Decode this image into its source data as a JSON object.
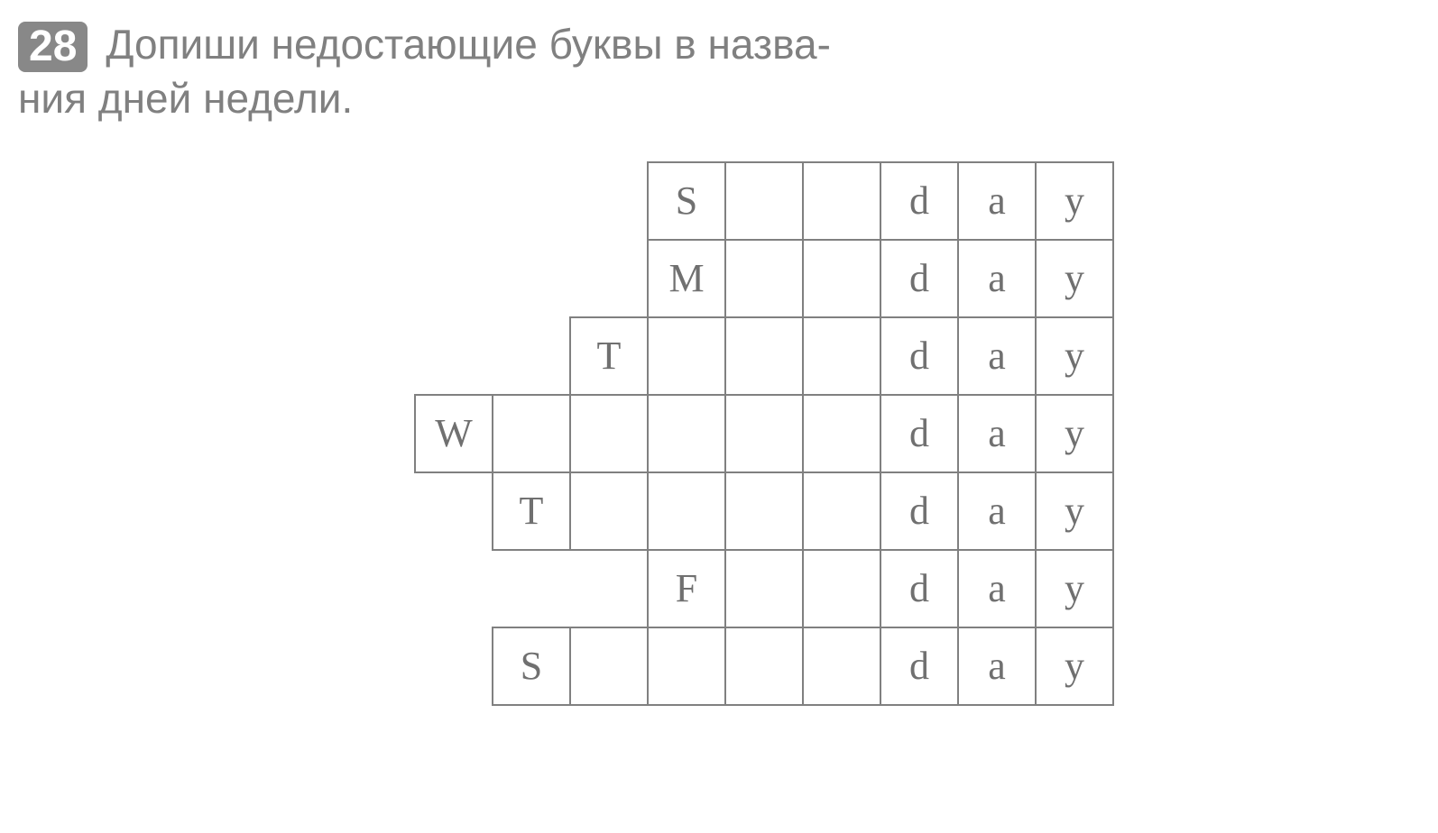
{
  "exercise": {
    "number": "28",
    "instruction_line1": "Допиши  недостающие  буквы  в  назва-",
    "instruction_line2": "ния  дней  недели."
  },
  "grid": {
    "columns": 9,
    "rows": 7,
    "cell_size": 86,
    "border_color": "#808080",
    "text_color": "#707070",
    "font_size": 44,
    "days": [
      {
        "row": 0,
        "cells": [
          {
            "col": 0,
            "text": "",
            "visible": false
          },
          {
            "col": 1,
            "text": "",
            "visible": false
          },
          {
            "col": 2,
            "text": "",
            "visible": false
          },
          {
            "col": 3,
            "text": "S",
            "visible": true
          },
          {
            "col": 4,
            "text": "",
            "visible": true
          },
          {
            "col": 5,
            "text": "",
            "visible": true
          },
          {
            "col": 6,
            "text": "d",
            "visible": true
          },
          {
            "col": 7,
            "text": "a",
            "visible": true
          },
          {
            "col": 8,
            "text": "y",
            "visible": true
          }
        ]
      },
      {
        "row": 1,
        "cells": [
          {
            "col": 0,
            "text": "",
            "visible": false
          },
          {
            "col": 1,
            "text": "",
            "visible": false
          },
          {
            "col": 2,
            "text": "",
            "visible": false
          },
          {
            "col": 3,
            "text": "M",
            "visible": true
          },
          {
            "col": 4,
            "text": "",
            "visible": true
          },
          {
            "col": 5,
            "text": "",
            "visible": true
          },
          {
            "col": 6,
            "text": "d",
            "visible": true
          },
          {
            "col": 7,
            "text": "a",
            "visible": true
          },
          {
            "col": 8,
            "text": "y",
            "visible": true
          }
        ]
      },
      {
        "row": 2,
        "cells": [
          {
            "col": 0,
            "text": "",
            "visible": false
          },
          {
            "col": 1,
            "text": "",
            "visible": false
          },
          {
            "col": 2,
            "text": "T",
            "visible": true
          },
          {
            "col": 3,
            "text": "",
            "visible": true
          },
          {
            "col": 4,
            "text": "",
            "visible": true
          },
          {
            "col": 5,
            "text": "",
            "visible": true
          },
          {
            "col": 6,
            "text": "d",
            "visible": true
          },
          {
            "col": 7,
            "text": "a",
            "visible": true
          },
          {
            "col": 8,
            "text": "y",
            "visible": true
          }
        ]
      },
      {
        "row": 3,
        "cells": [
          {
            "col": 0,
            "text": "W",
            "visible": true
          },
          {
            "col": 1,
            "text": "",
            "visible": true
          },
          {
            "col": 2,
            "text": "",
            "visible": true
          },
          {
            "col": 3,
            "text": "",
            "visible": true
          },
          {
            "col": 4,
            "text": "",
            "visible": true
          },
          {
            "col": 5,
            "text": "",
            "visible": true
          },
          {
            "col": 6,
            "text": "d",
            "visible": true
          },
          {
            "col": 7,
            "text": "a",
            "visible": true
          },
          {
            "col": 8,
            "text": "y",
            "visible": true
          }
        ]
      },
      {
        "row": 4,
        "cells": [
          {
            "col": 0,
            "text": "",
            "visible": false
          },
          {
            "col": 1,
            "text": "T",
            "visible": true
          },
          {
            "col": 2,
            "text": "",
            "visible": true
          },
          {
            "col": 3,
            "text": "",
            "visible": true
          },
          {
            "col": 4,
            "text": "",
            "visible": true
          },
          {
            "col": 5,
            "text": "",
            "visible": true
          },
          {
            "col": 6,
            "text": "d",
            "visible": true
          },
          {
            "col": 7,
            "text": "a",
            "visible": true
          },
          {
            "col": 8,
            "text": "y",
            "visible": true
          }
        ]
      },
      {
        "row": 5,
        "cells": [
          {
            "col": 0,
            "text": "",
            "visible": false
          },
          {
            "col": 1,
            "text": "",
            "visible": false
          },
          {
            "col": 2,
            "text": "",
            "visible": false
          },
          {
            "col": 3,
            "text": "F",
            "visible": true
          },
          {
            "col": 4,
            "text": "",
            "visible": true
          },
          {
            "col": 5,
            "text": "",
            "visible": true
          },
          {
            "col": 6,
            "text": "d",
            "visible": true
          },
          {
            "col": 7,
            "text": "a",
            "visible": true
          },
          {
            "col": 8,
            "text": "y",
            "visible": true
          }
        ]
      },
      {
        "row": 6,
        "cells": [
          {
            "col": 0,
            "text": "",
            "visible": false
          },
          {
            "col": 1,
            "text": "S",
            "visible": true
          },
          {
            "col": 2,
            "text": "",
            "visible": true
          },
          {
            "col": 3,
            "text": "",
            "visible": true
          },
          {
            "col": 4,
            "text": "",
            "visible": true
          },
          {
            "col": 5,
            "text": "",
            "visible": true
          },
          {
            "col": 6,
            "text": "d",
            "visible": true
          },
          {
            "col": 7,
            "text": "a",
            "visible": true
          },
          {
            "col": 8,
            "text": "y",
            "visible": true
          }
        ]
      }
    ]
  },
  "colors": {
    "background": "#ffffff",
    "number_badge_bg": "#888888",
    "number_badge_text": "#ffffff",
    "instruction_text": "#808080",
    "grid_border": "#808080",
    "grid_text": "#707070"
  }
}
